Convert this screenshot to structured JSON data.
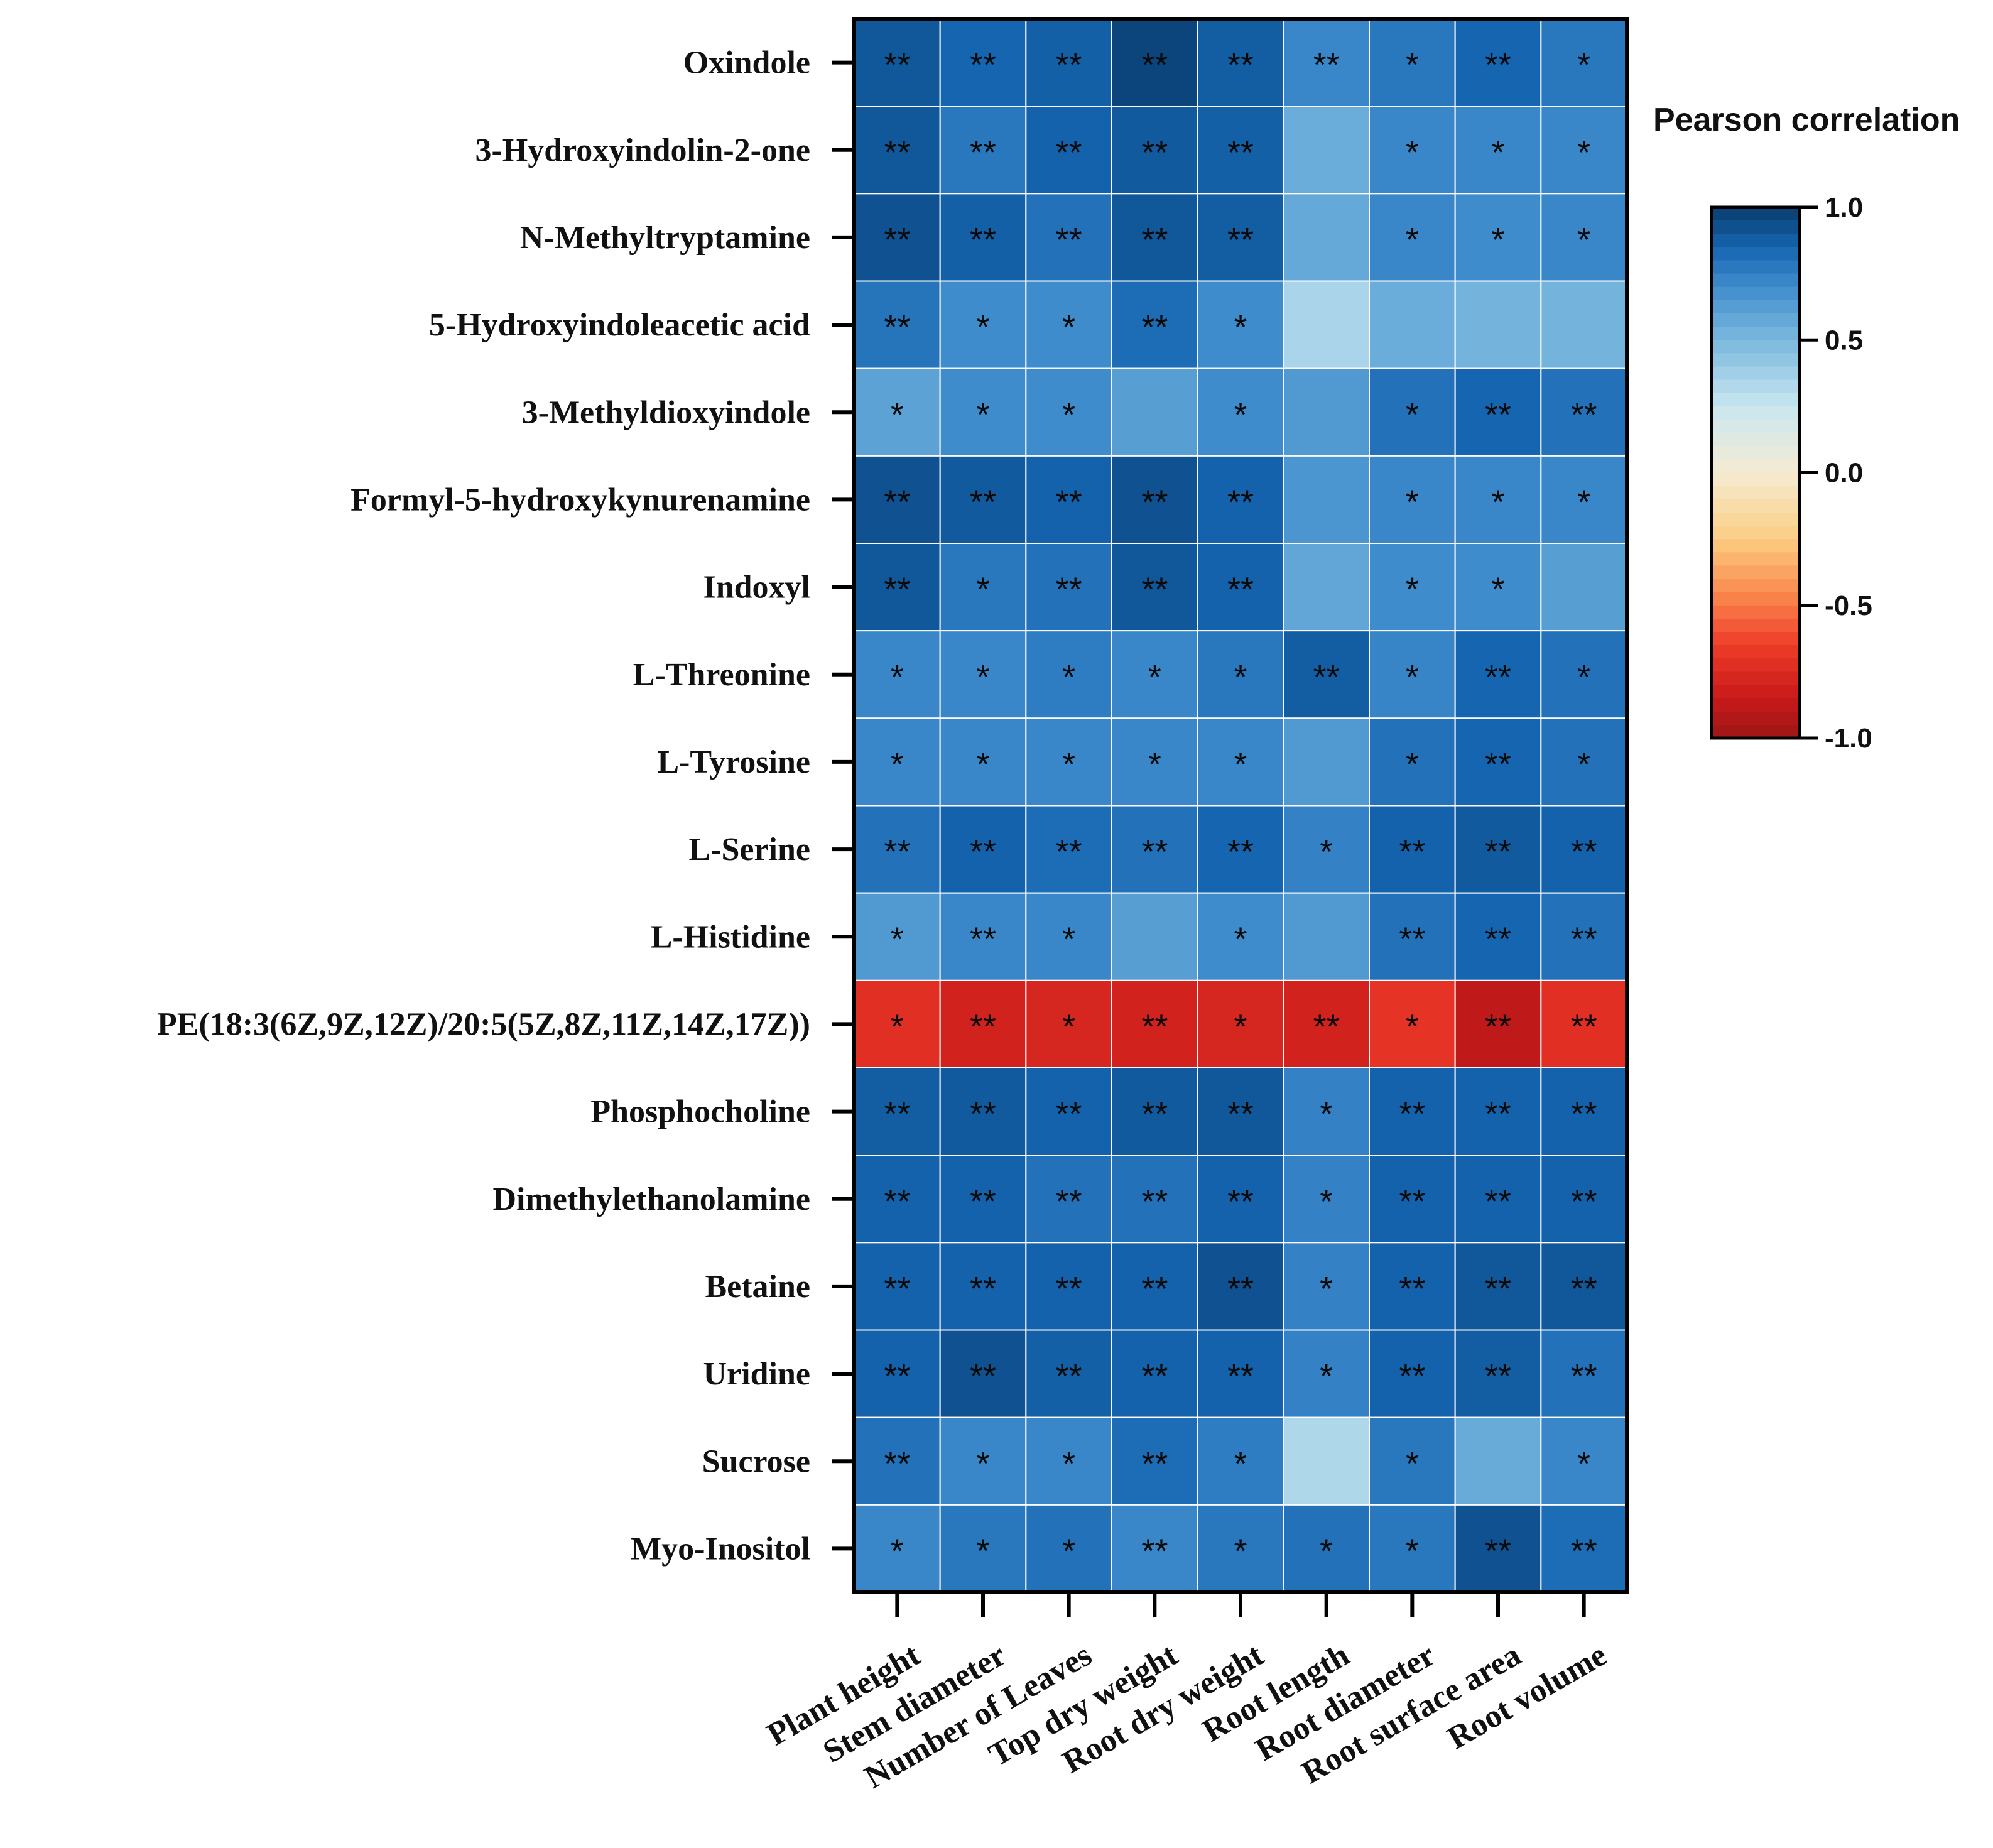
{
  "chart_data": {
    "type": "heatmap",
    "title": "",
    "legend_title": "Pearson correlation",
    "color_range": [
      -1.0,
      1.0
    ],
    "legend_ticks": [
      "1.0",
      "0.5",
      "0.0",
      "-0.5",
      "-1.0"
    ],
    "legend_tick_values": [
      1.0,
      0.5,
      0.0,
      -0.5,
      -1.0
    ],
    "legend_colors": [
      "#0a3d6e",
      "#1565b0",
      "#3f8ccc",
      "#7db8df",
      "#c9e6f0",
      "#f5ecd3",
      "#fbd98a",
      "#fb9a55",
      "#ee4a2a",
      "#c91a1a",
      "#9e1616"
    ],
    "rows": [
      "Oxindole",
      "3-Hydroxyindolin-2-one",
      "N-Methyltryptamine",
      "5-Hydroxyindoleacetic acid",
      "3-Methyldioxyindole",
      "Formyl-5-hydroxykynurenamine",
      "Indoxyl",
      "L-Threonine",
      "L-Tyrosine",
      "L-Serine",
      "L-Histidine",
      "PE(18:3(6Z,9Z,12Z)/20:5(5Z,8Z,11Z,14Z,17Z))",
      "Phosphocholine",
      "Dimethylethanolamine",
      "Betaine",
      "Uridine",
      "Sucrose",
      "Myo-Inositol"
    ],
    "columns": [
      "Plant height",
      "Stem diameter",
      "Number of Leaves",
      "Top dry weight",
      "Root dry weight",
      "Root length",
      "Root diameter",
      "Root surface area",
      "Root volume"
    ],
    "values": [
      [
        0.9,
        0.85,
        0.87,
        0.97,
        0.88,
        0.72,
        0.78,
        0.85,
        0.78
      ],
      [
        0.9,
        0.78,
        0.86,
        0.89,
        0.87,
        0.55,
        0.72,
        0.72,
        0.72
      ],
      [
        0.92,
        0.87,
        0.8,
        0.9,
        0.88,
        0.57,
        0.72,
        0.7,
        0.72
      ],
      [
        0.79,
        0.7,
        0.7,
        0.82,
        0.7,
        0.35,
        0.55,
        0.52,
        0.52
      ],
      [
        0.6,
        0.7,
        0.7,
        0.62,
        0.7,
        0.64,
        0.8,
        0.85,
        0.8
      ],
      [
        0.92,
        0.89,
        0.86,
        0.92,
        0.86,
        0.66,
        0.72,
        0.72,
        0.72
      ],
      [
        0.9,
        0.78,
        0.8,
        0.9,
        0.86,
        0.58,
        0.7,
        0.7,
        0.62
      ],
      [
        0.72,
        0.72,
        0.76,
        0.72,
        0.78,
        0.88,
        0.73,
        0.85,
        0.8
      ],
      [
        0.72,
        0.72,
        0.72,
        0.72,
        0.72,
        0.64,
        0.8,
        0.85,
        0.8
      ],
      [
        0.8,
        0.86,
        0.82,
        0.8,
        0.85,
        0.74,
        0.86,
        0.89,
        0.86
      ],
      [
        0.64,
        0.72,
        0.72,
        0.62,
        0.7,
        0.64,
        0.8,
        0.85,
        0.8
      ],
      [
        -0.72,
        -0.8,
        -0.78,
        -0.8,
        -0.78,
        -0.8,
        -0.7,
        -0.88,
        -0.72
      ],
      [
        0.88,
        0.89,
        0.86,
        0.89,
        0.9,
        0.74,
        0.86,
        0.86,
        0.86
      ],
      [
        0.86,
        0.86,
        0.8,
        0.8,
        0.86,
        0.74,
        0.86,
        0.86,
        0.86
      ],
      [
        0.86,
        0.86,
        0.86,
        0.86,
        0.92,
        0.74,
        0.86,
        0.9,
        0.9
      ],
      [
        0.86,
        0.92,
        0.87,
        0.86,
        0.86,
        0.74,
        0.86,
        0.88,
        0.8
      ],
      [
        0.8,
        0.72,
        0.72,
        0.82,
        0.76,
        0.33,
        0.78,
        0.56,
        0.72
      ],
      [
        0.72,
        0.78,
        0.8,
        0.72,
        0.78,
        0.8,
        0.78,
        0.92,
        0.82
      ]
    ],
    "significance": [
      [
        "**",
        "**",
        "**",
        "**",
        "**",
        "**",
        "*",
        "**",
        "*"
      ],
      [
        "**",
        "**",
        "**",
        "**",
        "**",
        "",
        "*",
        "*",
        "*"
      ],
      [
        "**",
        "**",
        "**",
        "**",
        "**",
        "",
        "*",
        "*",
        "*"
      ],
      [
        "**",
        "*",
        "*",
        "**",
        "*",
        "",
        "",
        "",
        ""
      ],
      [
        "*",
        "*",
        "*",
        "",
        "*",
        "",
        "*",
        "**",
        "**"
      ],
      [
        "**",
        "**",
        "**",
        "**",
        "**",
        "",
        "*",
        "*",
        "*"
      ],
      [
        "**",
        "*",
        "**",
        "**",
        "**",
        "",
        "*",
        "*",
        ""
      ],
      [
        "*",
        "*",
        "*",
        "*",
        "*",
        "**",
        "*",
        "**",
        "*"
      ],
      [
        "*",
        "*",
        "*",
        "*",
        "*",
        "",
        "*",
        "**",
        "*"
      ],
      [
        "**",
        "**",
        "**",
        "**",
        "**",
        "*",
        "**",
        "**",
        "**"
      ],
      [
        "*",
        "**",
        "*",
        "",
        "*",
        "",
        "**",
        "**",
        "**"
      ],
      [
        "*",
        "**",
        "*",
        "**",
        "*",
        "**",
        "*",
        "**",
        "**"
      ],
      [
        "**",
        "**",
        "**",
        "**",
        "**",
        "*",
        "**",
        "**",
        "**"
      ],
      [
        "**",
        "**",
        "**",
        "**",
        "**",
        "*",
        "**",
        "**",
        "**"
      ],
      [
        "**",
        "**",
        "**",
        "**",
        "**",
        "*",
        "**",
        "**",
        "**"
      ],
      [
        "**",
        "**",
        "**",
        "**",
        "**",
        "*",
        "**",
        "**",
        "**"
      ],
      [
        "**",
        "*",
        "*",
        "**",
        "*",
        "",
        "*",
        "",
        "*"
      ],
      [
        "*",
        "*",
        "*",
        "**",
        "*",
        "*",
        "*",
        "**",
        "**"
      ]
    ],
    "xlabel": "",
    "ylabel": ""
  }
}
